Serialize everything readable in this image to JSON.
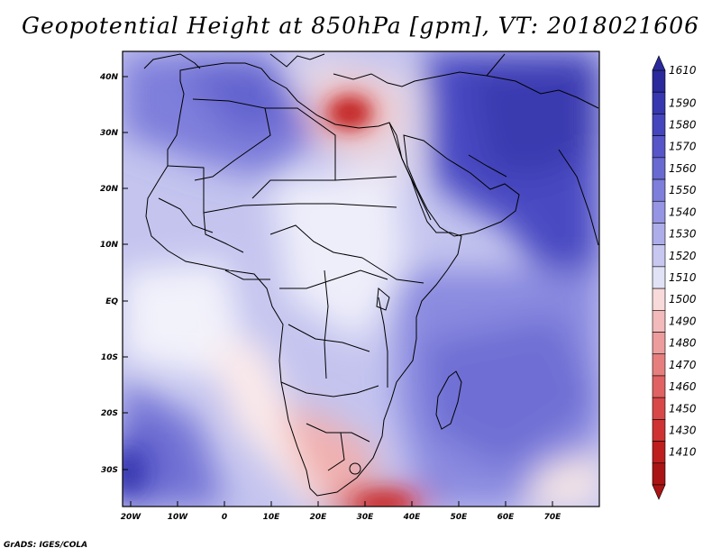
{
  "title": "Geopotential Height at 850hPa [gpm], VT: 2018021606",
  "credit": "GrADS: IGES/COLA",
  "lat_labels": [
    "40N",
    "30N",
    "20N",
    "10N",
    "EQ",
    "10S",
    "20S",
    "30S"
  ],
  "lon_labels": [
    "20W",
    "10W",
    "0",
    "10E",
    "20E",
    "30E",
    "40E",
    "50E",
    "60E",
    "70E"
  ],
  "colorbar": {
    "labels": [
      "1610",
      "1590",
      "1580",
      "1570",
      "1560",
      "1550",
      "1540",
      "1530",
      "1520",
      "1510",
      "1500",
      "1490",
      "1480",
      "1470",
      "1460",
      "1450",
      "1430",
      "1410"
    ],
    "colors": [
      "#2a2a9c",
      "#3737b0",
      "#4545be",
      "#5656c9",
      "#6969d2",
      "#7e7edb",
      "#9595e3",
      "#adade9",
      "#c7c7f0",
      "#e2e2f7",
      "#f8dada",
      "#f2baba",
      "#ec9c9c",
      "#e67e7e",
      "#e06262",
      "#d94848",
      "#cf3232",
      "#be1e1e",
      "#aa1414"
    ],
    "top_color": "#2a2a9c",
    "bottom_color": "#aa1414"
  },
  "colors": {
    "background": "#ffffff",
    "border": "#000000"
  }
}
